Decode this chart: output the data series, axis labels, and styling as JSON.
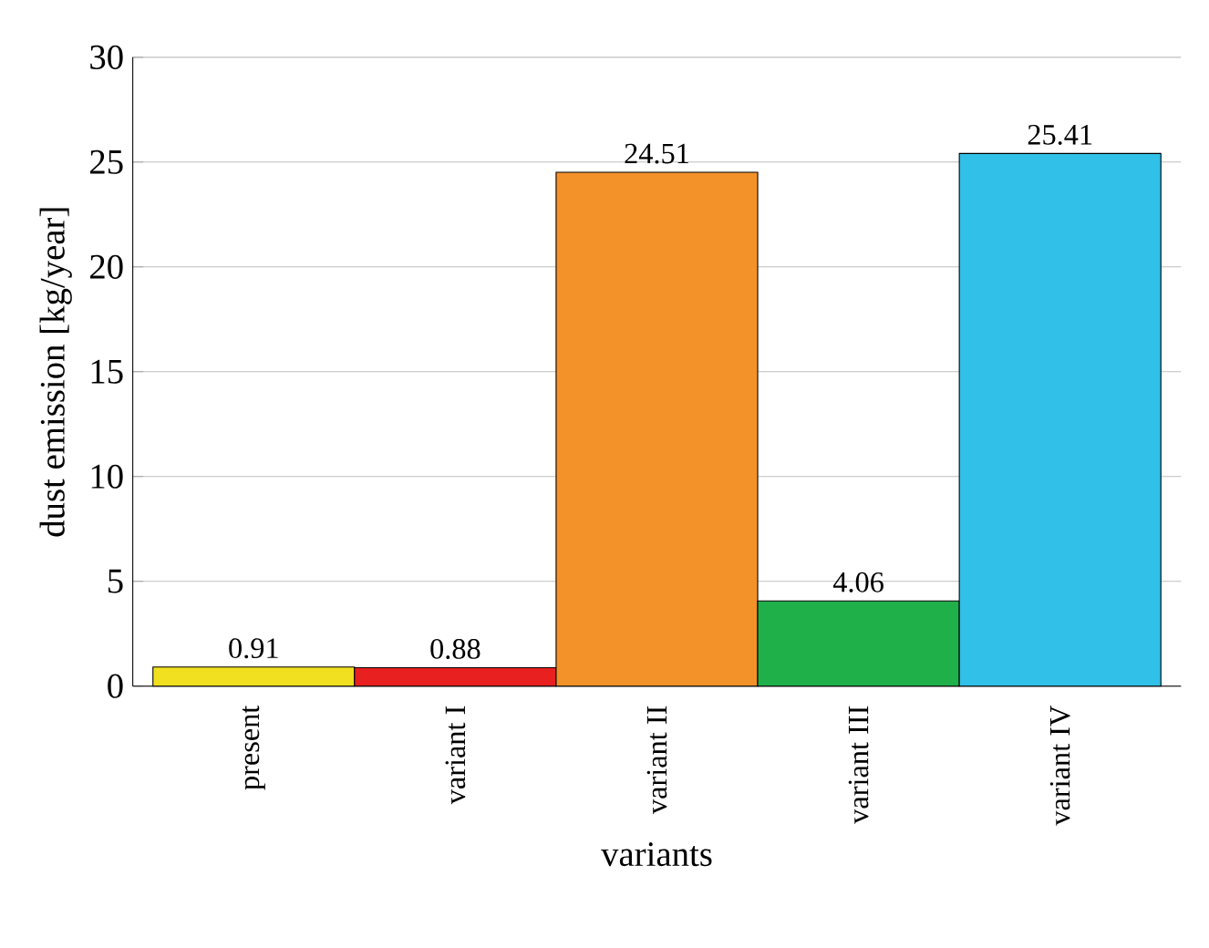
{
  "chart_data": {
    "type": "bar",
    "xlabel": "variants",
    "ylabel": "dust emission [kg/year]",
    "categories": [
      "present",
      "variant I",
      "variant II",
      "variant III",
      "variant IV"
    ],
    "values": [
      0.91,
      0.88,
      24.51,
      4.06,
      25.41
    ],
    "colors": [
      "#f0e020",
      "#e82020",
      "#f39229",
      "#20b04a",
      "#30c0e8"
    ],
    "ylim": [
      0,
      30
    ],
    "yticks": [
      0,
      5,
      10,
      15,
      20,
      25,
      30
    ],
    "grid": "y",
    "data_labels": true
  }
}
